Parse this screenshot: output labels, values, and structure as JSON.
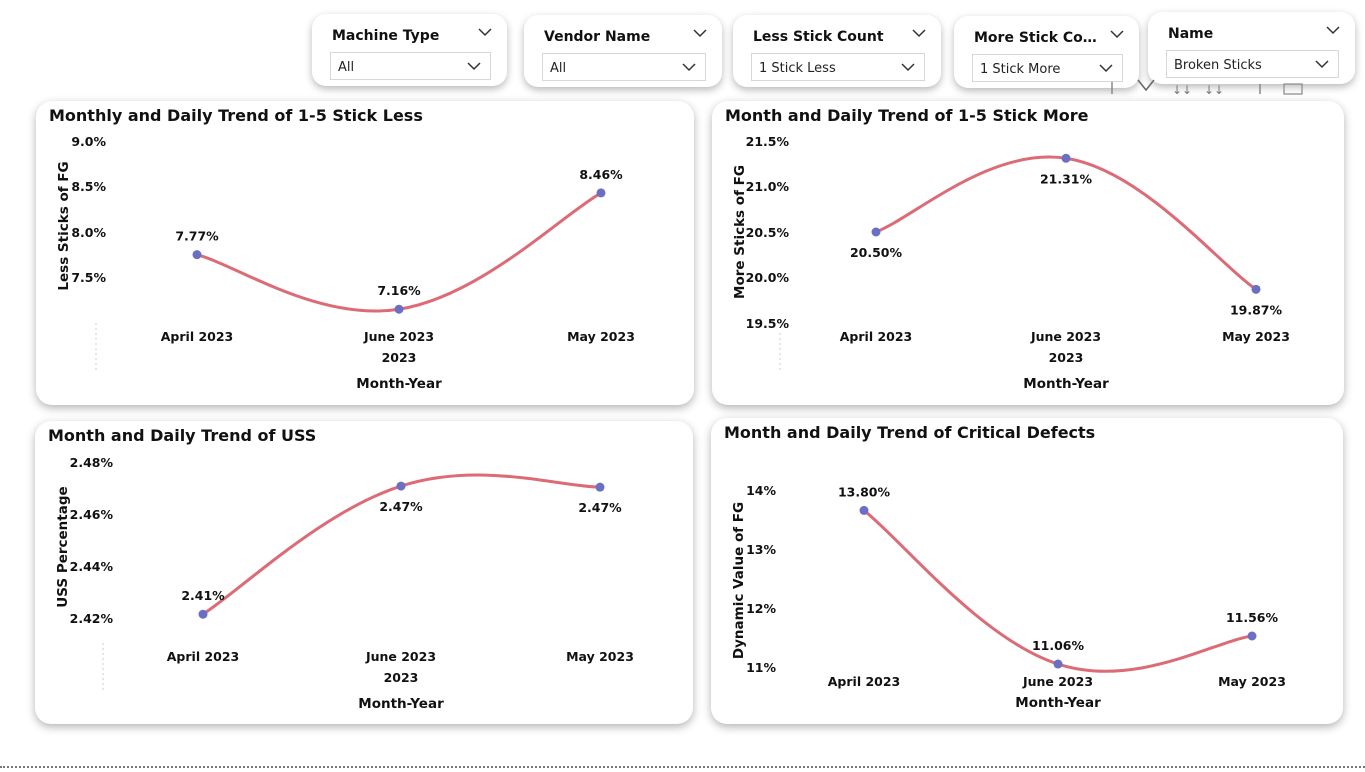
{
  "slicers": [
    {
      "title": "Machine Type",
      "value": "All"
    },
    {
      "title": "Vendor Name",
      "value": "All"
    },
    {
      "title": "Less Stick Count",
      "value": "1 Stick Less"
    },
    {
      "title": "More Stick Cou...",
      "value": "1 Stick More"
    },
    {
      "title": "Name",
      "value": "Broken Sticks"
    }
  ],
  "colors": {
    "line": "#dc6b76",
    "marker": "#6b6fc4"
  },
  "chart_data": [
    {
      "type": "line",
      "title": "Monthly and Daily Trend of 1-5 Stick Less",
      "xlabel": "Month-Year",
      "ylabel": "Less Sticks of FG",
      "categories": [
        "April 2023",
        "June 2023",
        "May 2023"
      ],
      "year_label": "2023",
      "values": [
        7.77,
        7.16,
        8.46
      ],
      "data_labels": [
        "7.77%",
        "7.16%",
        "8.46%"
      ],
      "yticks": [
        "9.0%",
        "8.5%",
        "8.0%",
        "7.5%"
      ],
      "ytick_values": [
        9.0,
        8.5,
        8.0,
        7.5
      ],
      "ylim": [
        7.14,
        9.04
      ]
    },
    {
      "type": "line",
      "title": "Month and Daily Trend of 1-5 Stick More",
      "xlabel": "Month-Year",
      "ylabel": "More Sticks of FG",
      "categories": [
        "April 2023",
        "June 2023",
        "May 2023"
      ],
      "year_label": "2023",
      "values": [
        20.5,
        21.31,
        19.87
      ],
      "data_labels": [
        "20.50%",
        "21.31%",
        "19.87%"
      ],
      "yticks": [
        "21.5%",
        "21.0%",
        "20.5%",
        "20.0%",
        "19.5%"
      ],
      "ytick_values": [
        21.5,
        21.0,
        20.5,
        20.0,
        19.5
      ],
      "ylim": [
        19.5,
        21.5
      ]
    },
    {
      "type": "line",
      "title": "Month and Daily Trend of USS",
      "xlabel": "Month-Year",
      "ylabel": "USS Percentage",
      "categories": [
        "April 2023",
        "June 2023",
        "May 2023"
      ],
      "year_label": "2023",
      "values": [
        2.413,
        2.474,
        2.4735
      ],
      "data_labels": [
        "2.41%",
        "2.47%",
        "2.47%"
      ],
      "yticks": [
        "2.48%",
        "2.46%",
        "2.44%",
        "2.42%"
      ],
      "ytick_values": [
        2.48,
        2.46,
        2.44,
        2.42
      ],
      "ylim": [
        2.405,
        2.485
      ]
    },
    {
      "type": "line",
      "title": "Month and Daily Trend of Critical Defects",
      "xlabel": "Month-Year",
      "ylabel": "Dynamic Value of FG",
      "categories": [
        "April 2023",
        "June 2023",
        "May 2023"
      ],
      "year_label": "",
      "values": [
        13.8,
        11.06,
        11.56
      ],
      "data_labels": [
        "13.80%",
        "11.06%",
        "11.56%"
      ],
      "yticks": [
        "14%",
        "13%",
        "12%",
        "11%"
      ],
      "ytick_values": [
        14,
        13,
        12,
        11
      ],
      "ylim": [
        10.9,
        14.2
      ]
    }
  ]
}
